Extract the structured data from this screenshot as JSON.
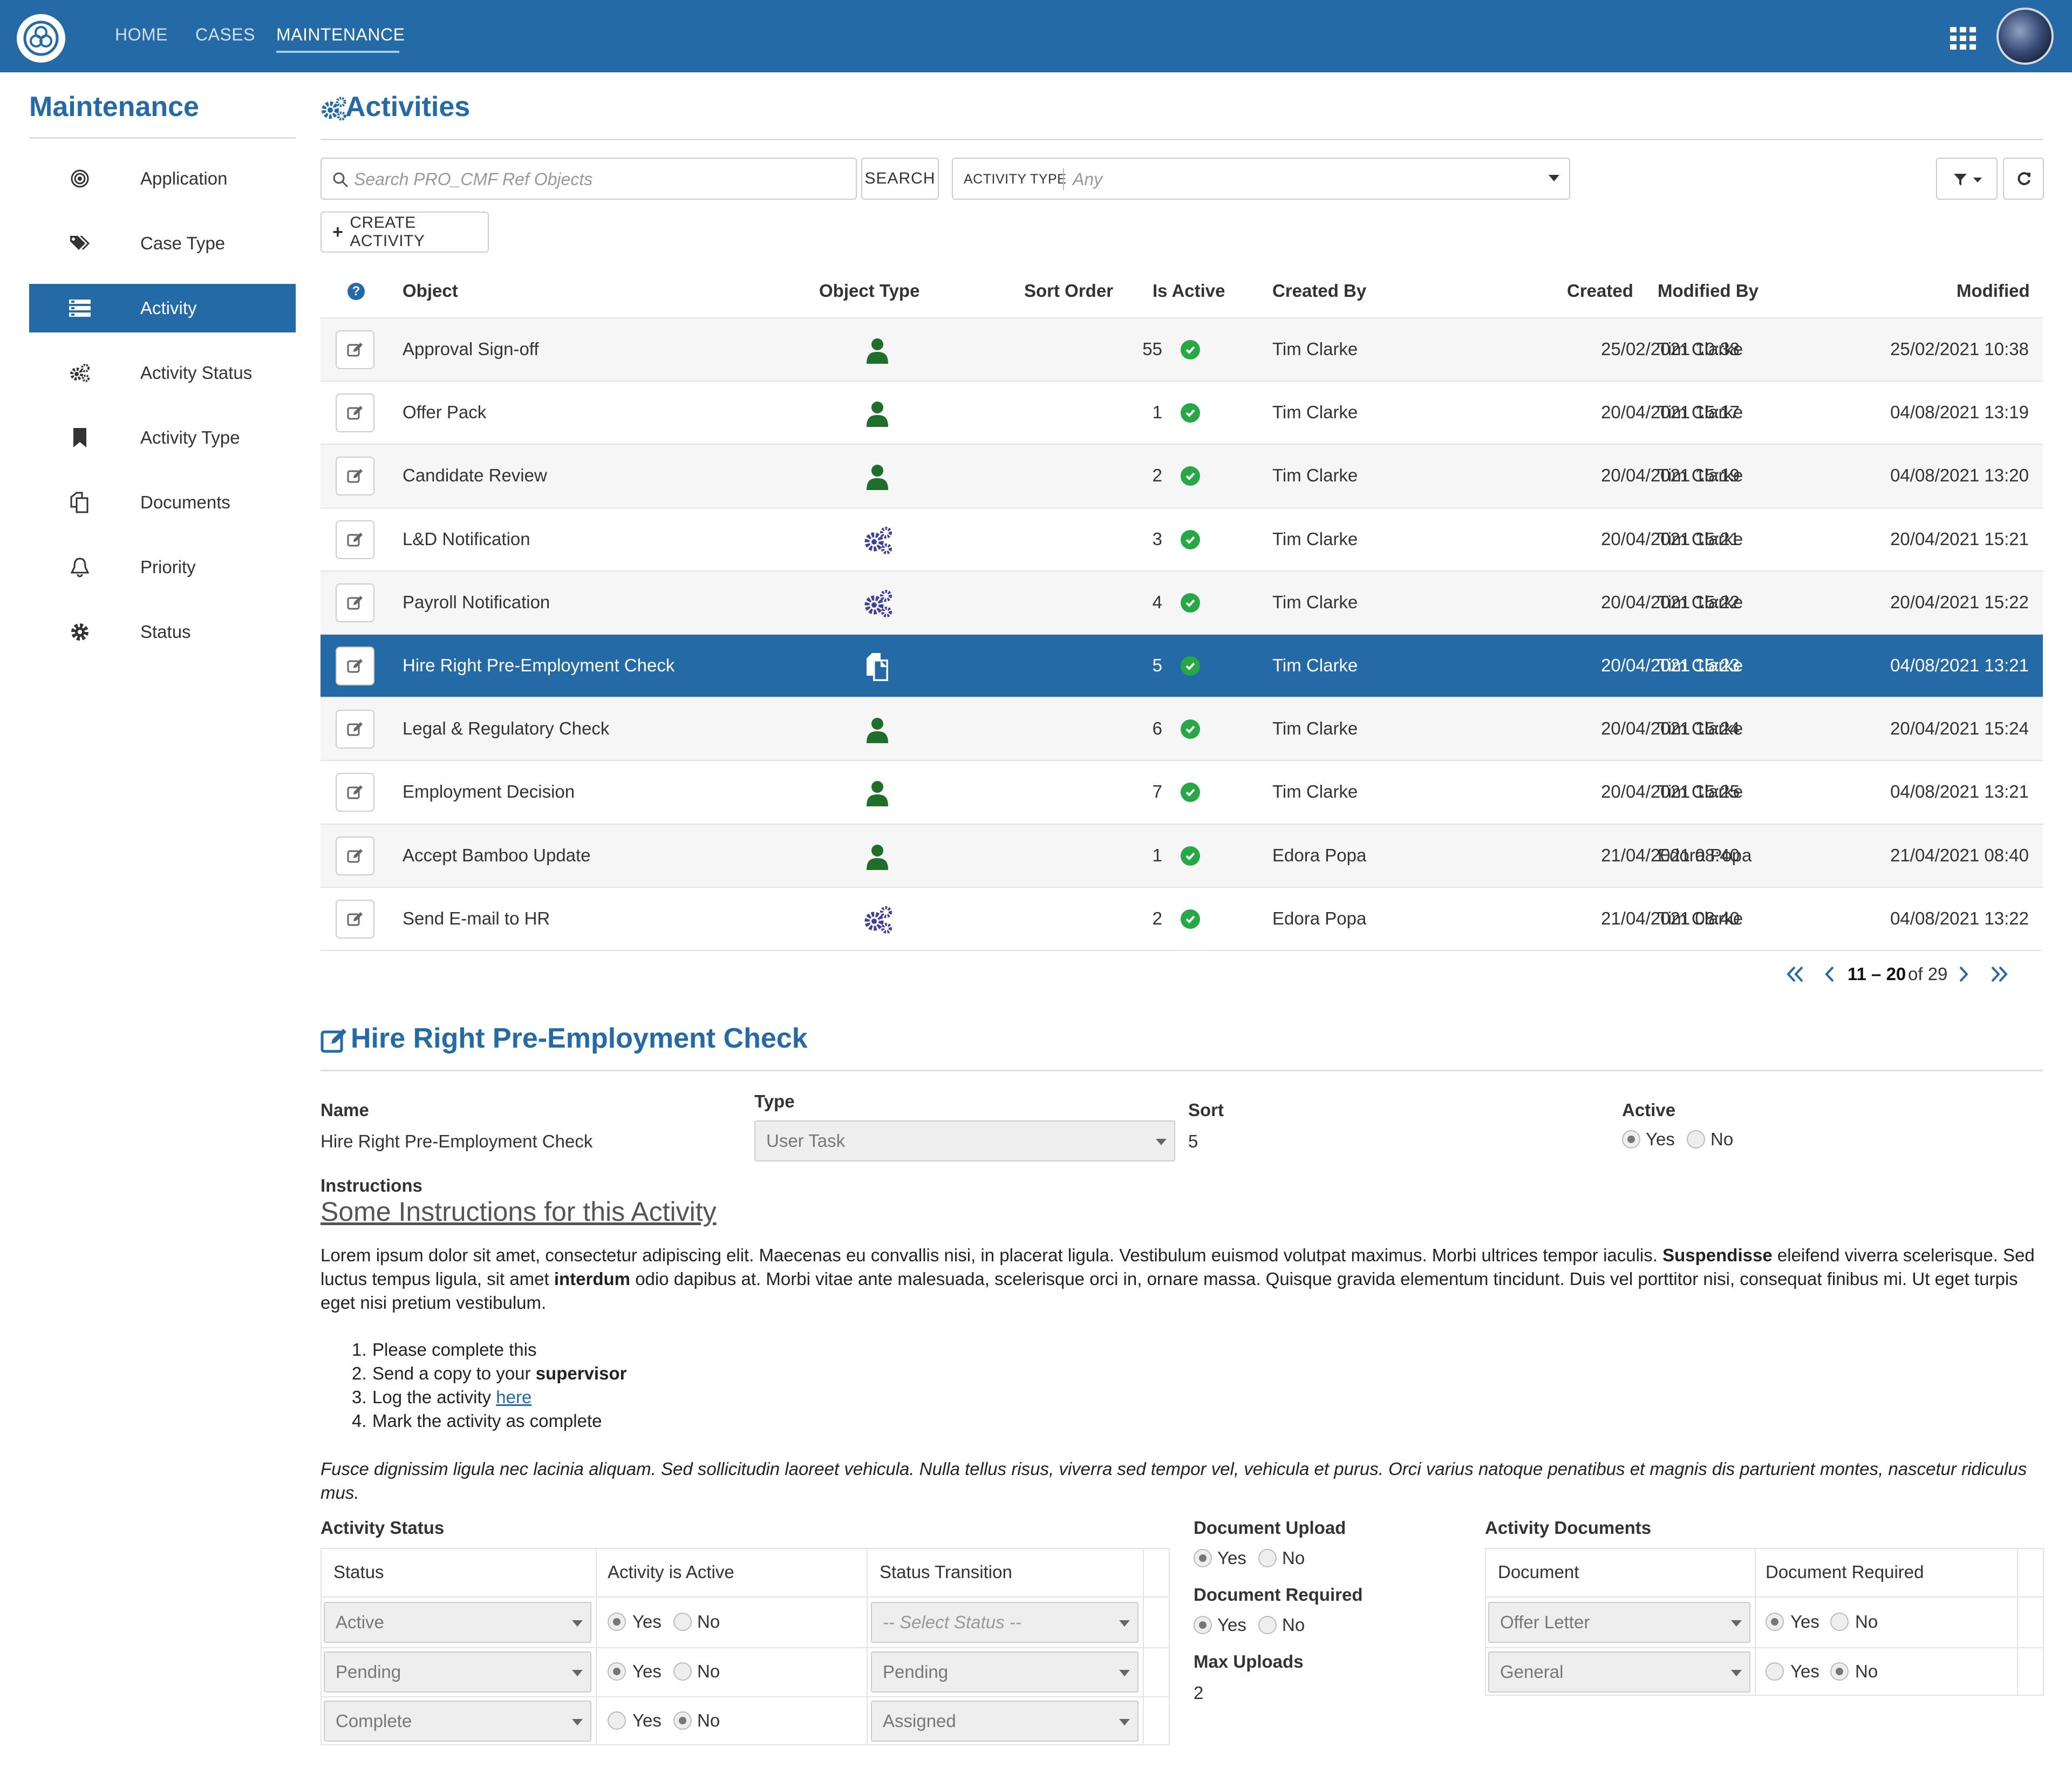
{
  "nav": {
    "home": "HOME",
    "cases": "CASES",
    "maintenance": "MAINTENANCE"
  },
  "sidebar": {
    "title": "Maintenance",
    "items": [
      {
        "label": "Application",
        "icon": "target-icon"
      },
      {
        "label": "Case Type",
        "icon": "tags-icon"
      },
      {
        "label": "Activity",
        "icon": "list-icon",
        "active": true
      },
      {
        "label": "Activity Status",
        "icon": "cogs-icon"
      },
      {
        "label": "Activity Type",
        "icon": "bookmark-icon"
      },
      {
        "label": "Documents",
        "icon": "copy-icon"
      },
      {
        "label": "Priority",
        "icon": "bell-icon"
      },
      {
        "label": "Status",
        "icon": "gear-icon"
      }
    ]
  },
  "main": {
    "title": "Activities",
    "search_placeholder": "Search PRO_CMF Ref Objects",
    "search_button": "SEARCH",
    "activity_type_label": "ACTIVITY TYPE",
    "activity_type_value": "Any",
    "create_button": "CREATE ACTIVITY"
  },
  "table": {
    "columns": [
      "Object",
      "Object Type",
      "Sort Order",
      "Is Active",
      "Created By",
      "Created",
      "Modified By",
      "Modified"
    ],
    "rows": [
      {
        "object": "Approval Sign-off",
        "type": "user",
        "sort": "55",
        "created_by": "Tim Clarke",
        "created": "25/02/2021 10:38",
        "modified_by": "Tim Clarke",
        "modified": "25/02/2021 10:38"
      },
      {
        "object": "Offer Pack",
        "type": "user",
        "sort": "1",
        "created_by": "Tim Clarke",
        "created": "20/04/2021 15:17",
        "modified_by": "Tim Clarke",
        "modified": "04/08/2021 13:19"
      },
      {
        "object": "Candidate Review",
        "type": "user",
        "sort": "2",
        "created_by": "Tim Clarke",
        "created": "20/04/2021 15:19",
        "modified_by": "Tim Clarke",
        "modified": "04/08/2021 13:20"
      },
      {
        "object": "L&D Notification",
        "type": "service",
        "sort": "3",
        "created_by": "Tim Clarke",
        "created": "20/04/2021 15:21",
        "modified_by": "Tim Clarke",
        "modified": "20/04/2021 15:21"
      },
      {
        "object": "Payroll Notification",
        "type": "service",
        "sort": "4",
        "created_by": "Tim Clarke",
        "created": "20/04/2021 15:22",
        "modified_by": "Tim Clarke",
        "modified": "20/04/2021 15:22"
      },
      {
        "object": "Hire Right Pre-Employment Check",
        "type": "document",
        "sort": "5",
        "created_by": "Tim Clarke",
        "created": "20/04/2021 15:23",
        "modified_by": "Tim Clarke",
        "modified": "04/08/2021 13:21",
        "selected": true
      },
      {
        "object": "Legal & Regulatory Check",
        "type": "user",
        "sort": "6",
        "created_by": "Tim Clarke",
        "created": "20/04/2021 15:24",
        "modified_by": "Tim Clarke",
        "modified": "20/04/2021 15:24"
      },
      {
        "object": "Employment Decision",
        "type": "user",
        "sort": "7",
        "created_by": "Tim Clarke",
        "created": "20/04/2021 15:25",
        "modified_by": "Tim Clarke",
        "modified": "04/08/2021 13:21"
      },
      {
        "object": "Accept Bamboo Update",
        "type": "user",
        "sort": "1",
        "created_by": "Edora Popa",
        "created": "21/04/2021 08:40",
        "modified_by": "Edora Popa",
        "modified": "21/04/2021 08:40"
      },
      {
        "object": "Send E-mail to HR",
        "type": "service",
        "sort": "2",
        "created_by": "Edora Popa",
        "created": "21/04/2021 08:40",
        "modified_by": "Tim Clarke",
        "modified": "04/08/2021 13:22"
      }
    ]
  },
  "pager": {
    "range": "11 – 20",
    "of": "of 29"
  },
  "detail": {
    "title": "Hire Right Pre-Employment Check",
    "name_label": "Name",
    "name_value": "Hire Right Pre-Employment Check",
    "type_label": "Type",
    "type_value": "User Task",
    "sort_label": "Sort",
    "sort_value": "5",
    "active_label": "Active",
    "yes": "Yes",
    "no": "No",
    "instructions_label": "Instructions",
    "instructions_heading": "Some Instructions for this Activity",
    "para1_a": "Lorem ipsum dolor sit amet, consectetur adipiscing elit. Maecenas eu convallis nisi, in placerat ligula. Vestibulum euismod volutpat maximus. Morbi ultrices tempor iaculis.",
    "para1_b": "Suspendisse",
    "para1_c": "eleifend viverra scelerisque. Sed",
    "para1_d": "luctus tempus ligula, sit amet",
    "para1_e": "interdum",
    "para1_f": "odio dapibus at. Morbi vitae ante malesuada, scelerisque orci in, ornare massa. Quisque gravida elementum tincidunt. Duis vel porttitor nisi, consequat finibus mi. Ut eget turpis",
    "para1_g": "eget nisi pretium vestibulum.",
    "list": [
      {
        "num": "1.",
        "text": "Please complete this"
      },
      {
        "num": "2.",
        "text": "Send a copy to your",
        "bold": "supervisor"
      },
      {
        "num": "3.",
        "text": "Log the activity",
        "link": "here"
      },
      {
        "num": "4.",
        "text": "Mark the activity as complete"
      }
    ],
    "para2_a": "Fusce dignissim ligula nec lacinia aliquam. Sed sollicitudin laoreet vehicula. Nulla tellus risus, viverra sed tempor vel, vehicula et purus. Orci varius natoque penatibus et magnis dis parturient montes, nascetur ridiculus",
    "para2_b": "mus."
  },
  "activity_status": {
    "title": "Activity Status",
    "columns": [
      "Status",
      "Activity is Active",
      "Status Transition"
    ],
    "rows": [
      {
        "status": "Active",
        "active": "yes",
        "transition": "-- Select Status --"
      },
      {
        "status": "Pending",
        "active": "yes",
        "transition": "Pending"
      },
      {
        "status": "Complete",
        "active": "no",
        "transition": "Assigned"
      }
    ]
  },
  "document_settings": {
    "upload_label": "Document Upload",
    "upload_value": "yes",
    "required_label": "Document Required",
    "required_value": "yes",
    "max_label": "Max Uploads",
    "max_value": "2"
  },
  "activity_documents": {
    "title": "Activity Documents",
    "columns": [
      "Document",
      "Document Required"
    ],
    "rows": [
      {
        "document": "Offer Letter",
        "required": "yes"
      },
      {
        "document": "General",
        "required": "no"
      }
    ]
  },
  "colors": {
    "brand": "#236aa6",
    "active_green": "#28a745",
    "user_icon": "#1f6e2a",
    "service_icon": "#3f3f9e"
  }
}
